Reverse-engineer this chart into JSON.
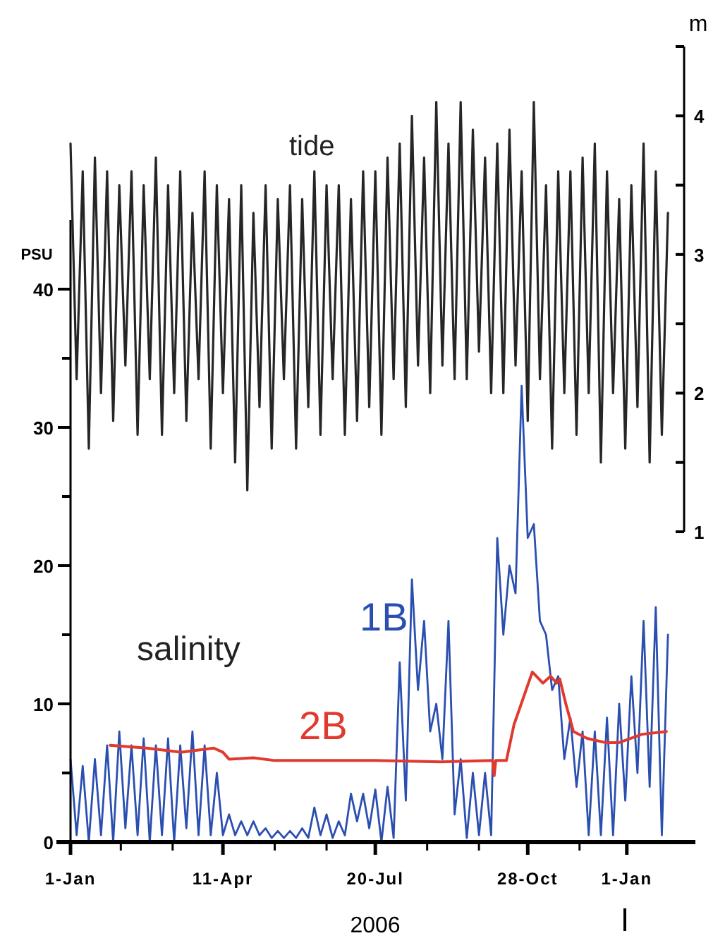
{
  "chart_data": {
    "type": "line",
    "ylabel": "PSU",
    "y2label": "m",
    "xlabel": "2006",
    "annotations": [
      "tide",
      "salinity"
    ],
    "xlim": [
      "2006-01-01",
      "2007-02-15"
    ],
    "xticks": [
      {
        "value": "2006-01-01",
        "label": "1-Jan"
      },
      {
        "value": "2006-02-03",
        "label": null
      },
      {
        "value": "2006-03-09",
        "label": null
      },
      {
        "value": "2006-04-11",
        "label": "11-Apr"
      },
      {
        "value": "2006-05-15",
        "label": null
      },
      {
        "value": "2006-06-18",
        "label": null
      },
      {
        "value": "2006-07-20",
        "label": "20-Jul"
      },
      {
        "value": "2006-08-23",
        "label": null
      },
      {
        "value": "2006-09-26",
        "label": null
      },
      {
        "value": "2006-10-28",
        "label": "28-Oct"
      },
      {
        "value": "2006-12-01",
        "label": null
      },
      {
        "value": "2007-01-01",
        "label": "1-Jan"
      }
    ],
    "ylim": [
      0,
      45
    ],
    "yticks": [
      0,
      {
        "value": 5,
        "label": null
      },
      10,
      {
        "value": 15,
        "label": null
      },
      20,
      {
        "value": 25,
        "label": null
      },
      30,
      {
        "value": 35,
        "label": null
      },
      40
    ],
    "y2lim": [
      1,
      4.5
    ],
    "y2ticks": [
      1,
      {
        "value": 1.5,
        "label": null
      },
      2,
      {
        "value": 2.5,
        "label": null
      },
      3,
      {
        "value": 3.5,
        "label": null
      },
      4,
      {
        "value": 4.5,
        "label": null
      }
    ],
    "x": [
      "2006-01-01",
      "2006-01-05",
      "2006-01-09",
      "2006-01-13",
      "2006-01-17",
      "2006-01-21",
      "2006-01-25",
      "2006-01-29",
      "2006-02-02",
      "2006-02-06",
      "2006-02-10",
      "2006-02-14",
      "2006-02-18",
      "2006-02-22",
      "2006-02-26",
      "2006-03-02",
      "2006-03-06",
      "2006-03-10",
      "2006-03-14",
      "2006-03-18",
      "2006-03-22",
      "2006-03-26",
      "2006-03-30",
      "2006-04-03",
      "2006-04-07",
      "2006-04-11",
      "2006-04-15",
      "2006-04-19",
      "2006-04-23",
      "2006-04-27",
      "2006-05-01",
      "2006-05-05",
      "2006-05-09",
      "2006-05-13",
      "2006-05-17",
      "2006-05-21",
      "2006-05-25",
      "2006-05-29",
      "2006-06-02",
      "2006-06-06",
      "2006-06-10",
      "2006-06-14",
      "2006-06-18",
      "2006-06-22",
      "2006-06-26",
      "2006-06-30",
      "2006-07-04",
      "2006-07-08",
      "2006-07-12",
      "2006-07-16",
      "2006-07-20",
      "2006-07-24",
      "2006-07-28",
      "2006-08-01",
      "2006-08-05",
      "2006-08-09",
      "2006-08-13",
      "2006-08-17",
      "2006-08-21",
      "2006-08-25",
      "2006-08-29",
      "2006-09-02",
      "2006-09-06",
      "2006-09-10",
      "2006-09-14",
      "2006-09-18",
      "2006-09-22",
      "2006-09-26",
      "2006-09-30",
      "2006-10-04",
      "2006-10-08",
      "2006-10-12",
      "2006-10-16",
      "2006-10-20",
      "2006-10-24",
      "2006-10-28",
      "2006-11-01",
      "2006-11-05",
      "2006-11-09",
      "2006-11-13",
      "2006-11-17",
      "2006-11-21",
      "2006-11-25",
      "2006-11-29",
      "2006-12-03",
      "2006-12-07",
      "2006-12-11",
      "2006-12-15",
      "2006-12-19",
      "2006-12-23",
      "2006-12-27",
      "2006-12-31",
      "2007-01-04",
      "2007-01-08",
      "2007-01-12",
      "2007-01-16",
      "2007-01-20",
      "2007-01-24",
      "2007-01-28"
    ],
    "grid": false,
    "marker": "none",
    "line_style": "solid",
    "series": [
      {
        "axis": "y2",
        "color": "#262626",
        "values": [
          3.8,
          2.1,
          3.6,
          1.6,
          3.7,
          2.0,
          3.6,
          1.8,
          3.5,
          2.2,
          3.6,
          1.7,
          3.5,
          2.1,
          3.7,
          1.7,
          3.5,
          2.0,
          3.6,
          1.8,
          3.3,
          2.1,
          3.6,
          1.6,
          3.5,
          2.0,
          3.4,
          1.5,
          3.5,
          1.3,
          3.3,
          1.9,
          3.5,
          1.6,
          3.4,
          2.1,
          3.5,
          1.6,
          3.4,
          1.9,
          3.6,
          1.7,
          3.5,
          2.1,
          3.5,
          1.7,
          3.4,
          1.8,
          3.6,
          1.9,
          3.6,
          1.7,
          3.7,
          2.1,
          3.8,
          1.9,
          4.0,
          2.2,
          3.7,
          2.0,
          4.1,
          2.2,
          3.8,
          2.1,
          4.1,
          2.1,
          3.9,
          2.3,
          3.7,
          2.0,
          3.8,
          2.0,
          3.9,
          2.2,
          3.6,
          1.8,
          4.1,
          2.1,
          3.5,
          1.6,
          3.6,
          2.0,
          3.6,
          1.7,
          3.7,
          2.0,
          3.8,
          1.5,
          3.6,
          2.0,
          3.4,
          1.6,
          3.5,
          1.9,
          3.8,
          1.5,
          3.6,
          1.7,
          3.3
        ]
      },
      {
        "name": "1B",
        "color": "#2b4fb0",
        "values": [
          6,
          0.5,
          5.5,
          0,
          6,
          0.5,
          7,
          0,
          8,
          1,
          7,
          0.5,
          7.5,
          0,
          7,
          0.5,
          7.5,
          0,
          7,
          1,
          8,
          0.5,
          7,
          0.5,
          5,
          0.5,
          2,
          0.5,
          1.5,
          0.5,
          1.5,
          0.5,
          1,
          0.3,
          0.8,
          0.3,
          0.8,
          0.3,
          1,
          0.3,
          2.5,
          0.5,
          2,
          0.3,
          1.5,
          0.5,
          3.5,
          1.5,
          3.5,
          1,
          3.8,
          0,
          4,
          0.3,
          13,
          3,
          19,
          11,
          16,
          8,
          10,
          6,
          16,
          2,
          6,
          0.3,
          5,
          0.5,
          5,
          0.5,
          22,
          15,
          20,
          18,
          33,
          22,
          23,
          16,
          15,
          11,
          12,
          6,
          9,
          4,
          8,
          0.5,
          8,
          0.5,
          9,
          0.5,
          10,
          3,
          12,
          5,
          16,
          4,
          17,
          0.5,
          15
        ]
      },
      {
        "name": "2B",
        "color": "#e03a2e",
        "x": [
          "2006-01-27",
          "2006-02-20",
          "2006-03-15",
          "2006-04-05",
          "2006-04-11",
          "2006-04-15",
          "2006-05-01",
          "2006-05-15",
          "2006-07-20",
          "2006-09-01",
          "2006-10-05",
          "2006-10-06",
          "2006-10-07",
          "2006-10-14",
          "2006-10-19",
          "2006-10-31",
          "2006-11-07",
          "2006-11-12",
          "2006-11-16",
          "2006-11-18",
          "2006-11-22",
          "2006-11-27",
          "2006-12-06",
          "2006-12-18",
          "2006-12-27",
          "2007-01-11",
          "2007-01-27"
        ],
        "values": [
          7.0,
          6.8,
          6.5,
          6.8,
          6.5,
          6.0,
          6.1,
          5.9,
          5.9,
          5.8,
          5.9,
          4.8,
          5.9,
          5.9,
          8.5,
          12.3,
          11.5,
          12.0,
          11.5,
          11.8,
          10,
          8,
          7.5,
          7.2,
          7.2,
          7.8,
          8.0
        ]
      }
    ]
  }
}
